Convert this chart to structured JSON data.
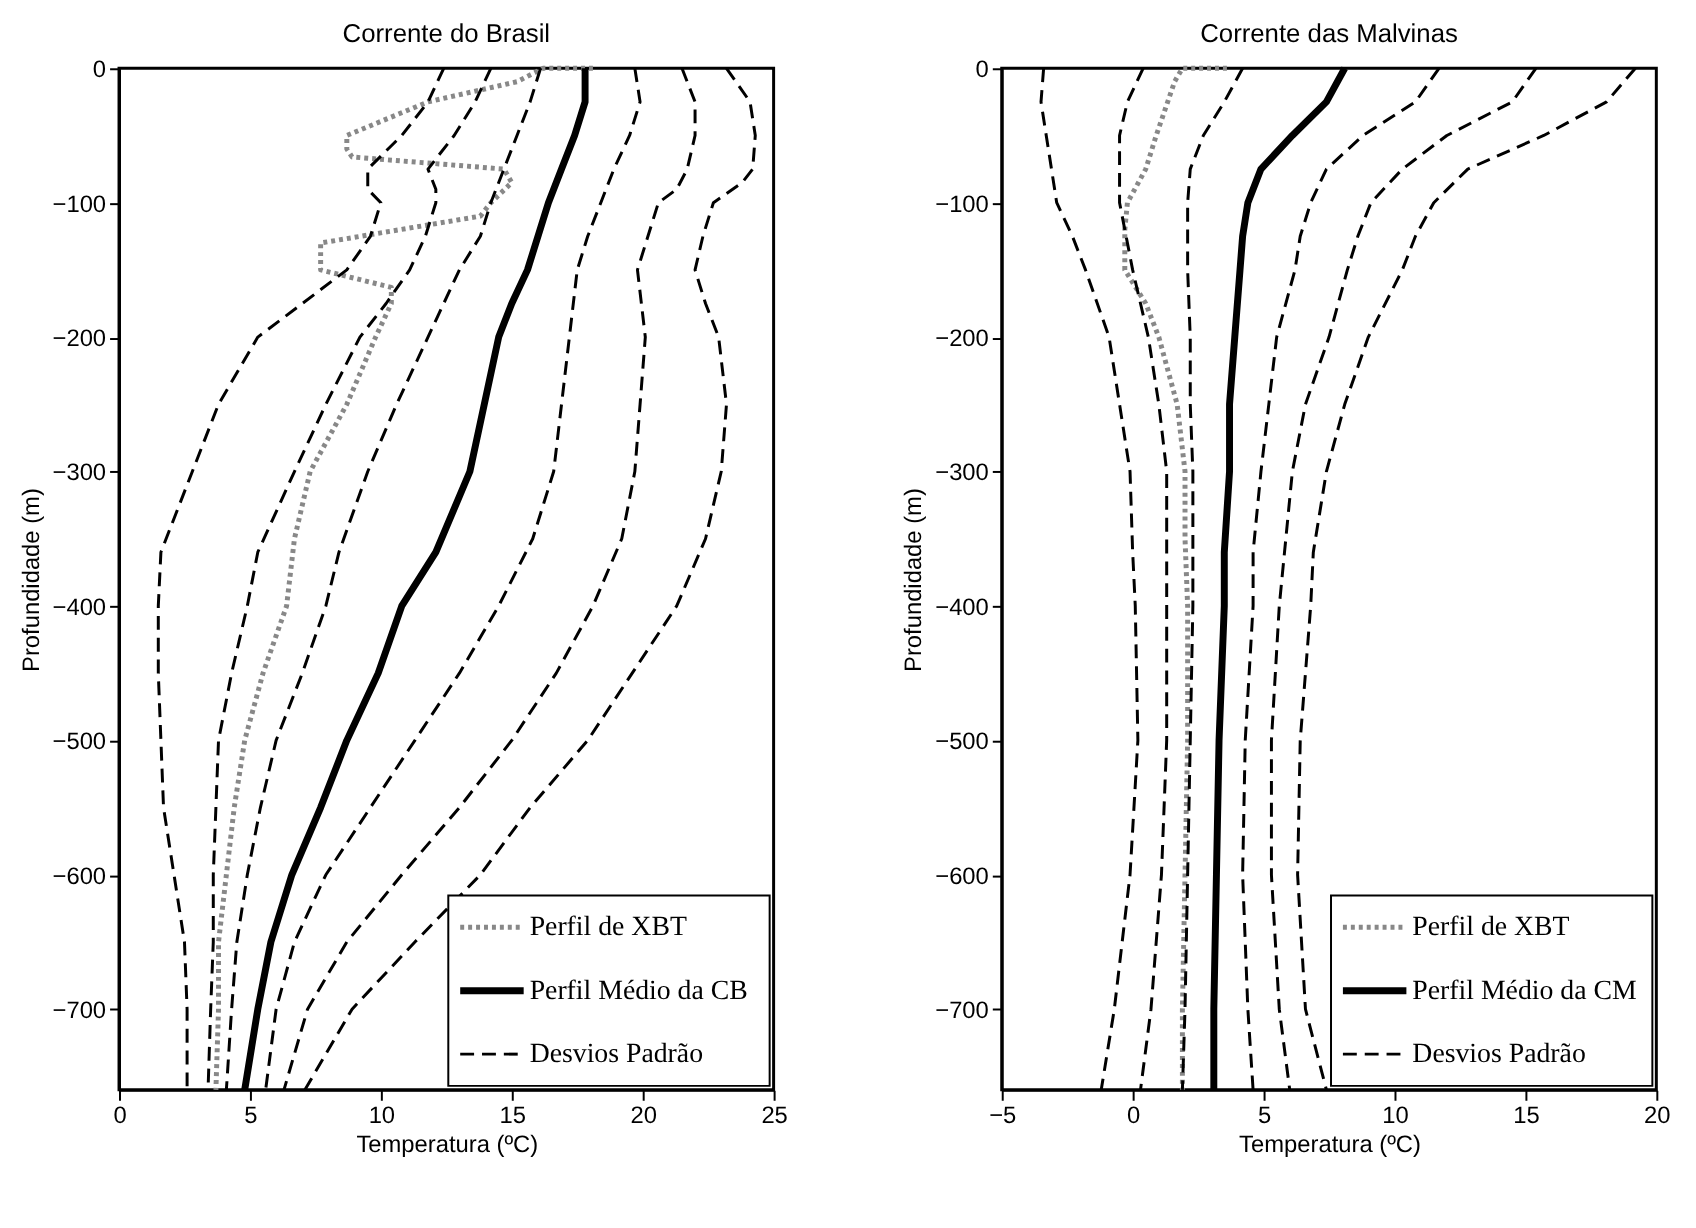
{
  "chart_data": [
    {
      "type": "line",
      "title": "Corrente do Brasil",
      "xlabel": "Temperatura (ºC)",
      "ylabel": "Profundidade (m)",
      "xlim": [
        0,
        25
      ],
      "xticks": [
        0,
        5,
        10,
        15,
        20,
        25
      ],
      "ylim": [
        -760,
        0
      ],
      "yticks": [
        0,
        -100,
        -200,
        -300,
        -400,
        -500,
        -600,
        -700
      ],
      "grid": false,
      "legend": "bottom right",
      "series": [
        {
          "name": "Perfil de XBT",
          "color": "#888888",
          "line_style": "dotted",
          "x": [
            18.1,
            16.2,
            15.2,
            11.8,
            8.7,
            8.7,
            8.9,
            14.7,
            15.0,
            14.2,
            13.8,
            7.7,
            7.7,
            10.4,
            10.4,
            9.8,
            8.7,
            7.3,
            6.7,
            6.4,
            5.5,
            4.8,
            4.4,
            4.1,
            3.8,
            3.8,
            3.7
          ],
          "values": [
            0,
            0,
            -10,
            -25,
            -50,
            -60,
            -66,
            -75,
            -85,
            -100,
            -110,
            -130,
            -150,
            -163,
            -175,
            -200,
            -250,
            -300,
            -350,
            -400,
            -450,
            -500,
            -550,
            -600,
            -650,
            -700,
            -760
          ]
        },
        {
          "name": "Perfil Médio da CB",
          "color": "#000000",
          "line_style": "solid",
          "x": [
            17.8,
            17.8,
            17.4,
            16.9,
            16.4,
            15.6,
            15.0,
            14.5,
            13.4,
            12.1,
            10.8,
            9.9,
            8.7,
            7.7,
            6.6,
            5.8,
            5.3,
            4.8
          ],
          "values": [
            0,
            -25,
            -50,
            -75,
            -100,
            -150,
            -175,
            -200,
            -300,
            -360,
            -400,
            -450,
            -500,
            -550,
            -600,
            -650,
            -700,
            -760
          ]
        },
        {
          "name": "Desvios Padrão",
          "color": "#000000",
          "line_style": "dashed",
          "x": [
            23.2,
            24.1,
            24.3,
            24.2,
            23.8,
            22.7,
            22.3,
            22.0,
            22.4,
            22.9,
            23.2,
            23.0,
            22.4,
            21.3,
            19.6,
            17.9,
            15.7,
            13.8,
            11.3,
            8.9,
            7.1
          ],
          "values": [
            0,
            -25,
            -50,
            -75,
            -85,
            -100,
            -125,
            -150,
            -175,
            -200,
            -250,
            -300,
            -350,
            -400,
            -450,
            -500,
            -550,
            -600,
            -650,
            -700,
            -760
          ]
        },
        {
          "color": "#000000",
          "line_style": "dashed",
          "x": [
            21.5,
            22.0,
            22.0,
            21.7,
            21.3,
            20.6,
            20.2,
            19.8,
            20.1,
            19.9,
            19.7,
            19.2,
            18.1,
            16.7,
            15.0,
            13.0,
            10.8,
            8.7,
            7.2,
            6.3
          ],
          "values": [
            0,
            -25,
            -50,
            -75,
            -90,
            -100,
            -125,
            -150,
            -200,
            -250,
            -300,
            -350,
            -400,
            -450,
            -500,
            -550,
            -600,
            -650,
            -700,
            -760
          ]
        },
        {
          "color": "#000000",
          "line_style": "dashed",
          "x": [
            19.7,
            19.9,
            19.5,
            18.9,
            18.4,
            17.9,
            17.5,
            17.2,
            16.9,
            16.6,
            15.8,
            14.5,
            13.0,
            11.3,
            9.6,
            7.9,
            6.7,
            6.0,
            5.6
          ],
          "values": [
            0,
            -25,
            -50,
            -75,
            -100,
            -125,
            -150,
            -200,
            -250,
            -300,
            -350,
            -400,
            -450,
            -500,
            -550,
            -600,
            -650,
            -700,
            -760
          ]
        },
        {
          "color": "#000000",
          "line_style": "dashed",
          "x": [
            16.1,
            15.7,
            15.2,
            14.7,
            14.2,
            13.8,
            13.0,
            12.4,
            11.8,
            10.6,
            9.5,
            8.4,
            7.9,
            7.0,
            6.0,
            5.4,
            4.9,
            4.5,
            4.3,
            4.1
          ],
          "values": [
            0,
            -25,
            -50,
            -75,
            -100,
            -125,
            -150,
            -175,
            -200,
            -250,
            -300,
            -360,
            -400,
            -450,
            -500,
            -550,
            -600,
            -650,
            -700,
            -760
          ]
        },
        {
          "color": "#000000",
          "line_style": "dashed",
          "x": [
            14.2,
            13.6,
            12.8,
            11.8,
            12.1,
            12.1,
            11.7,
            11.1,
            10.2,
            9.2,
            7.9,
            6.7,
            5.3,
            4.9,
            4.3,
            3.8,
            3.7,
            3.6,
            3.6,
            3.5,
            3.4
          ],
          "values": [
            0,
            -25,
            -50,
            -75,
            -90,
            -100,
            -125,
            -150,
            -175,
            -200,
            -250,
            -300,
            -360,
            -400,
            -450,
            -500,
            -550,
            -600,
            -650,
            -700,
            -760
          ]
        },
        {
          "color": "#000000",
          "line_style": "dashed",
          "x": [
            12.4,
            11.8,
            10.8,
            9.5,
            9.5,
            10.0,
            9.6,
            8.7,
            7.0,
            5.3,
            3.8,
            2.8,
            1.6,
            1.5,
            1.5,
            1.6,
            1.7,
            2.1,
            2.5,
            2.6,
            2.6
          ],
          "values": [
            0,
            -25,
            -50,
            -75,
            -90,
            -100,
            -125,
            -150,
            -175,
            -200,
            -250,
            -300,
            -360,
            -400,
            -450,
            -500,
            -550,
            -600,
            -650,
            -700,
            -760
          ]
        }
      ]
    },
    {
      "type": "line",
      "title": "Corrente das Malvinas",
      "xlabel": "Temperatura (ºC)",
      "ylabel": "Profundidade (m)",
      "xlim": [
        -5,
        20
      ],
      "xticks": [
        -5,
        0,
        5,
        10,
        15,
        20
      ],
      "ylim": [
        -760,
        0
      ],
      "yticks": [
        0,
        -100,
        -200,
        -300,
        -400,
        -500,
        -600,
        -700
      ],
      "grid": false,
      "legend": "bottom right",
      "series": [
        {
          "name": "Perfil de XBT",
          "color": "#888888",
          "line_style": "dotted",
          "x": [
            3.6,
            1.9,
            1.6,
            0.9,
            0.5,
            -0.2,
            -0.3,
            -0.3,
            0.5,
            1.0,
            1.7,
            2.0,
            2.0,
            2.1,
            2.1,
            2.0,
            1.9,
            1.9
          ],
          "values": [
            0,
            0,
            -10,
            -50,
            -75,
            -100,
            -120,
            -150,
            -175,
            -200,
            -250,
            -300,
            -350,
            -400,
            -500,
            -600,
            -700,
            -760
          ]
        },
        {
          "name": "Perfil Médio da CM",
          "color": "#000000",
          "line_style": "solid",
          "x": [
            8.1,
            7.4,
            6.1,
            4.9,
            4.4,
            4.2,
            4.1,
            3.9,
            3.7,
            3.7,
            3.5,
            3.5,
            3.3,
            3.2,
            3.1,
            3.1
          ],
          "values": [
            0,
            -25,
            -50,
            -75,
            -100,
            -125,
            -150,
            -200,
            -250,
            -300,
            -360,
            -400,
            -500,
            -600,
            -700,
            -760
          ]
        },
        {
          "name": "Desvios Padrão",
          "color": "#000000",
          "line_style": "dashed",
          "x": [
            19.2,
            18.1,
            15.7,
            12.8,
            11.5,
            10.8,
            10.3,
            9.0,
            8.1,
            7.4,
            6.9,
            6.8,
            6.4,
            6.3,
            6.6,
            7.4
          ],
          "values": [
            0,
            -25,
            -50,
            -75,
            -100,
            -125,
            -150,
            -200,
            -250,
            -300,
            -360,
            -400,
            -500,
            -600,
            -700,
            -760
          ]
        },
        {
          "color": "#000000",
          "line_style": "dashed",
          "x": [
            15.4,
            14.5,
            12.0,
            10.3,
            9.1,
            8.6,
            8.2,
            7.5,
            6.6,
            6.1,
            5.8,
            5.6,
            5.3,
            5.3,
            5.6,
            6.0
          ],
          "values": [
            0,
            -25,
            -50,
            -75,
            -100,
            -125,
            -150,
            -200,
            -250,
            -300,
            -360,
            -400,
            -500,
            -600,
            -700,
            -760
          ]
        },
        {
          "color": "#000000",
          "line_style": "dashed",
          "x": [
            11.7,
            10.8,
            8.8,
            7.4,
            6.8,
            6.4,
            6.2,
            5.5,
            5.2,
            4.9,
            4.6,
            4.6,
            4.3,
            4.2,
            4.4,
            4.6
          ],
          "values": [
            0,
            -25,
            -50,
            -75,
            -100,
            -125,
            -150,
            -200,
            -250,
            -300,
            -360,
            -400,
            -500,
            -600,
            -700,
            -760
          ]
        },
        {
          "color": "#000000",
          "line_style": "dashed",
          "x": [
            4.2,
            3.5,
            2.7,
            2.2,
            2.1,
            2.1,
            2.2,
            2.2,
            2.3,
            2.3,
            2.3,
            2.2,
            2.1,
            2.0,
            1.9
          ],
          "values": [
            0,
            -25,
            -50,
            -75,
            -100,
            -150,
            -200,
            -250,
            -300,
            -360,
            -400,
            -500,
            -600,
            -700,
            -760
          ]
        },
        {
          "color": "#000000",
          "line_style": "dashed",
          "x": [
            0.4,
            -0.2,
            -0.5,
            -0.5,
            0.0,
            0.6,
            1.0,
            1.3,
            1.3,
            1.3,
            1.3,
            1.1,
            0.7,
            0.3
          ],
          "values": [
            0,
            -25,
            -50,
            -100,
            -150,
            -200,
            -250,
            -300,
            -360,
            -400,
            -500,
            -600,
            -700,
            -760
          ]
        },
        {
          "color": "#000000",
          "line_style": "dashed",
          "x": [
            -3.4,
            -3.5,
            -3.3,
            -3.1,
            -2.9,
            -2.3,
            -1.8,
            -0.9,
            -0.5,
            -0.1,
            0.0,
            0.1,
            0.2,
            -0.1,
            -0.7,
            -1.2
          ],
          "values": [
            0,
            -25,
            -50,
            -75,
            -100,
            -125,
            -150,
            -200,
            -250,
            -300,
            -360,
            -400,
            -500,
            -600,
            -700,
            -760
          ]
        }
      ]
    }
  ]
}
